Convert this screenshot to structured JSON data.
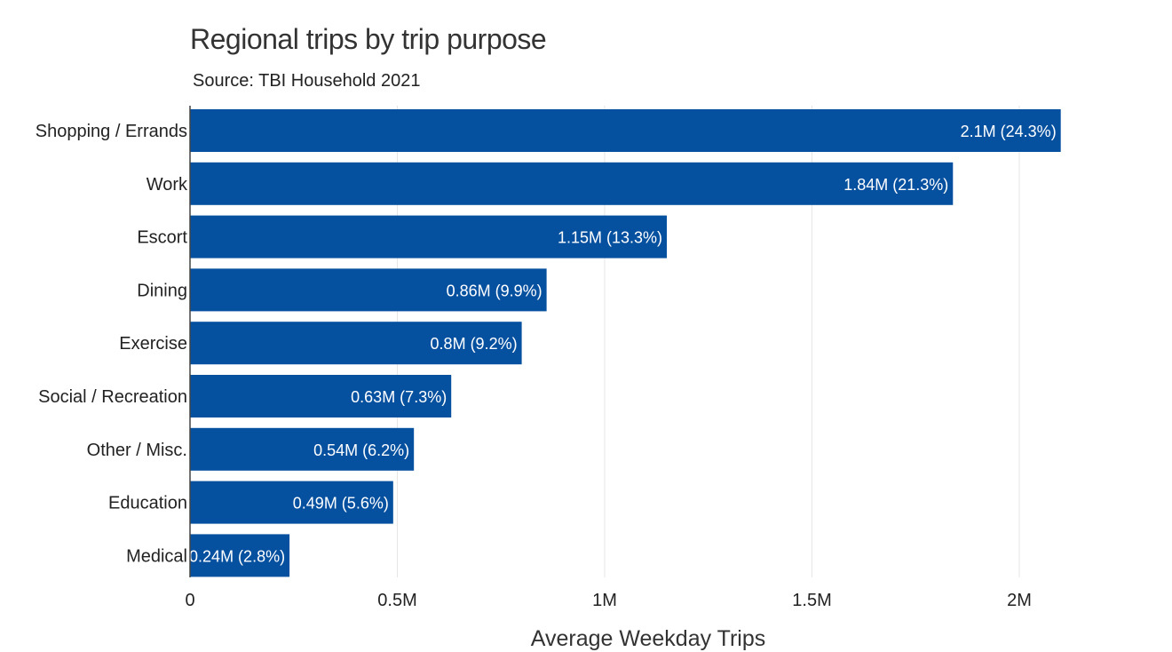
{
  "chart_data": {
    "type": "bar",
    "orientation": "horizontal",
    "title": "Regional trips by trip purpose",
    "subtitle": "Source: TBI Household 2021",
    "xlabel": "Average Weekday Trips",
    "ylabel": "",
    "xlim": [
      0,
      2250000
    ],
    "grid": true,
    "bar_color": "#0650a0",
    "categories": [
      "Shopping / Errands",
      "Work",
      "Escort",
      "Dining",
      "Exercise",
      "Social / Recreation",
      "Other / Misc.",
      "Education",
      "Medical"
    ],
    "values": [
      2100000,
      1840000,
      1150000,
      860000,
      800000,
      630000,
      540000,
      490000,
      240000
    ],
    "labels": [
      "2.1M (24.3%)",
      "1.84M (21.3%)",
      "1.15M (13.3%)",
      "0.86M (9.9%)",
      "0.8M (9.2%)",
      "0.63M (7.3%)",
      "0.54M (6.2%)",
      "0.49M (5.6%)",
      "0.24M (2.8%)"
    ],
    "x_ticks": [
      0,
      500000,
      1000000,
      1500000,
      2000000
    ],
    "x_tick_labels": [
      "0",
      "0.5M",
      "1M",
      "1.5M",
      "2M"
    ]
  }
}
